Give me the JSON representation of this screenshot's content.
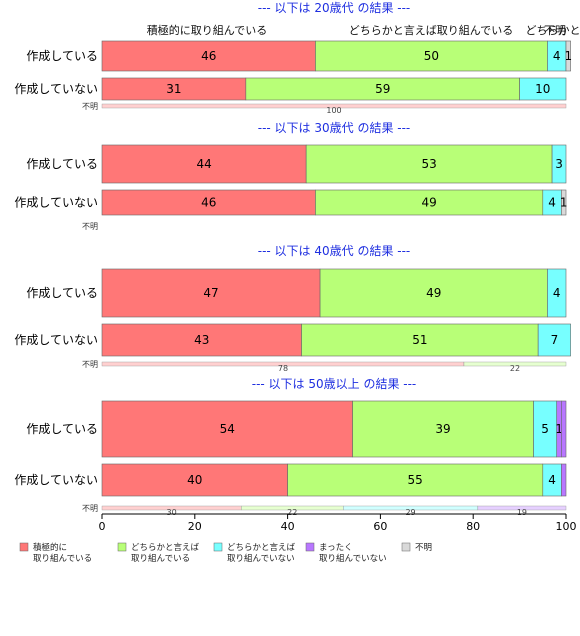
{
  "chart_data": {
    "type": "bar",
    "orientation": "horizontal",
    "stacked": true,
    "xlim": [
      0,
      100
    ],
    "x_ticks": [
      0,
      20,
      40,
      60,
      80,
      100
    ],
    "legend_position": "bottom",
    "series": [
      {
        "key": "s1",
        "color": "#ff7777",
        "lines": [
          "積極的に",
          "取り組んでいる"
        ]
      },
      {
        "key": "s2",
        "color": "#b8ff77",
        "lines": [
          "どちらかと言えば",
          "取り組んでいる"
        ]
      },
      {
        "key": "s3",
        "color": "#77ffff",
        "lines": [
          "どちらかと言えば",
          "取り組んでいない"
        ]
      },
      {
        "key": "s4",
        "color": "#b877ff",
        "lines": [
          "まったく",
          "取り組んでいない"
        ]
      },
      {
        "key": "s5",
        "color": "#d9d9d9",
        "lines": [
          "不明"
        ]
      }
    ],
    "panels": [
      {
        "title": "--- 以下は 20歳代 の結果 ---",
        "header_labels": [
          "積極的に取り組んでいる",
          "どちらかと言えば取り組んでいる",
          "どちらかと",
          "不明"
        ],
        "rows": [
          {
            "label": "作成している",
            "values": [
              46,
              50,
              4,
              0,
              1
            ],
            "labels": [
              "46",
              "50",
              "4",
              "",
              "1"
            ]
          },
          {
            "label": "作成していない",
            "values": [
              31,
              59,
              10,
              0,
              0
            ],
            "labels": [
              "31",
              "59",
              "10",
              "",
              ""
            ]
          }
        ],
        "unknown": {
          "label": "不明",
          "values": [
            100,
            0,
            0,
            0,
            0
          ],
          "labels": [
            "100",
            "",
            "",
            "",
            ""
          ]
        }
      },
      {
        "title": "--- 以下は 30歳代 の結果 ---",
        "rows": [
          {
            "label": "作成している",
            "values": [
              44,
              53,
              3,
              0,
              0
            ],
            "labels": [
              "44",
              "53",
              "3",
              "",
              ""
            ]
          },
          {
            "label": "作成していない",
            "values": [
              46,
              49,
              4,
              0,
              1
            ],
            "labels": [
              "46",
              "49",
              "4",
              "",
              "1"
            ]
          }
        ],
        "unknown": {
          "label": "不明",
          "values": [
            0,
            0,
            0,
            0,
            0
          ],
          "labels": [
            "",
            "",
            "",
            "",
            ""
          ]
        }
      },
      {
        "title": "--- 以下は 40歳代 の結果 ---",
        "rows": [
          {
            "label": "作成している",
            "values": [
              47,
              49,
              4,
              0,
              0
            ],
            "labels": [
              "47",
              "49",
              "4",
              "",
              ""
            ]
          },
          {
            "label": "作成していない",
            "values": [
              43,
              51,
              7,
              0,
              0
            ],
            "labels": [
              "43",
              "51",
              "7",
              "",
              ""
            ]
          }
        ],
        "unknown": {
          "label": "不明",
          "values": [
            78,
            22,
            0,
            0,
            0
          ],
          "labels": [
            "78",
            "22",
            "",
            "",
            ""
          ]
        }
      },
      {
        "title": "--- 以下は 50歳以上 の結果 ---",
        "rows": [
          {
            "label": "作成している",
            "values": [
              54,
              39,
              5,
              1,
              0
            ],
            "labels": [
              "54",
              "39",
              "5",
              "1",
              ""
            ]
          },
          {
            "label": "作成していない",
            "values": [
              40,
              55,
              4,
              0,
              0
            ],
            "labels": [
              "40",
              "55",
              "4",
              "",
              ""
            ]
          }
        ],
        "unknown": {
          "label": "不明",
          "values": [
            30,
            22,
            29,
            19,
            0
          ],
          "labels": [
            "30",
            "22",
            "29",
            "19",
            ""
          ]
        }
      }
    ]
  }
}
